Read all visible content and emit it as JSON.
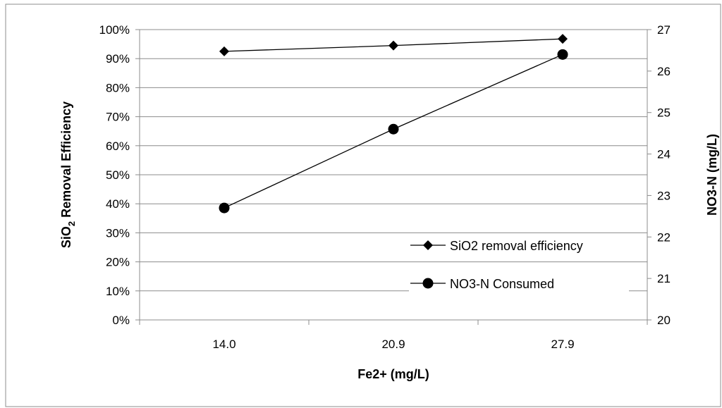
{
  "chart_data": {
    "type": "line",
    "categories": [
      "14.0",
      "20.9",
      "27.9"
    ],
    "xlabel": "Fe2+ (mg/L)",
    "ylabel_left": {
      "main": "SiO",
      "sub": "2",
      "rest": " Removal Efficiency"
    },
    "ylabel_right": "NO3-N (mg/L)",
    "y_left": {
      "min": 0,
      "max": 100,
      "step": 10,
      "unit": "%"
    },
    "y_right": {
      "min": 20,
      "max": 27,
      "step": 1
    },
    "grid": true,
    "legend_position": "lower-right",
    "series": [
      {
        "name": "SiO2 removal efficiency",
        "axis": "left",
        "marker": "diamond",
        "values": [
          92.5,
          94.5,
          96.8
        ]
      },
      {
        "name": "NO3-N Consumed",
        "axis": "right",
        "marker": "circle",
        "values": [
          22.7,
          24.6,
          26.4
        ]
      }
    ]
  },
  "colors": {
    "line": "#000000",
    "grid": "#8c8c8c",
    "frame": "#8c8c8c"
  }
}
